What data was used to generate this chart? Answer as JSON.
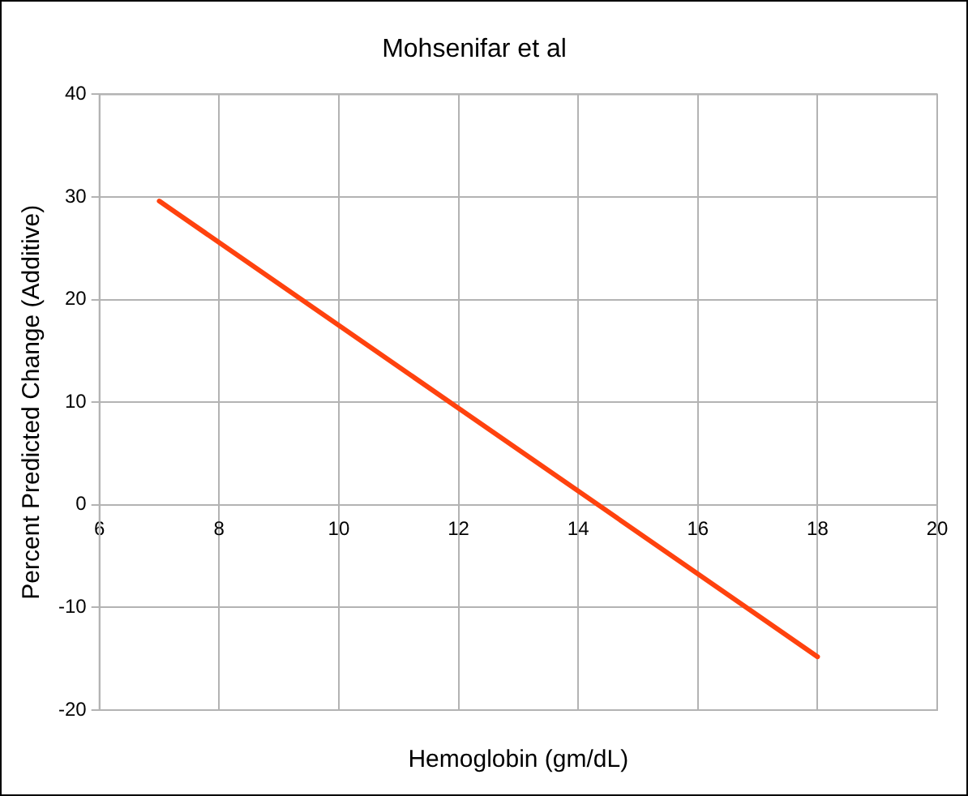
{
  "chart_data": {
    "type": "line",
    "title": "Mohsenifar et al",
    "xlabel": "Hemoglobin (gm/dL)",
    "ylabel": "Percent Predicted Change (Additive)",
    "series": [
      {
        "color": "#ff420e",
        "x": [
          7,
          18
        ],
        "values": [
          29.6,
          -14.8
        ]
      }
    ],
    "xlim": [
      6,
      20
    ],
    "xticks": [
      6,
      8,
      10,
      12,
      14,
      16,
      18,
      20
    ],
    "ylim": [
      -20,
      40
    ],
    "yticks": [
      -20,
      -10,
      0,
      10,
      20,
      30,
      40
    ],
    "grid": true,
    "legend": false,
    "marker": "none",
    "line_style": "solid"
  }
}
